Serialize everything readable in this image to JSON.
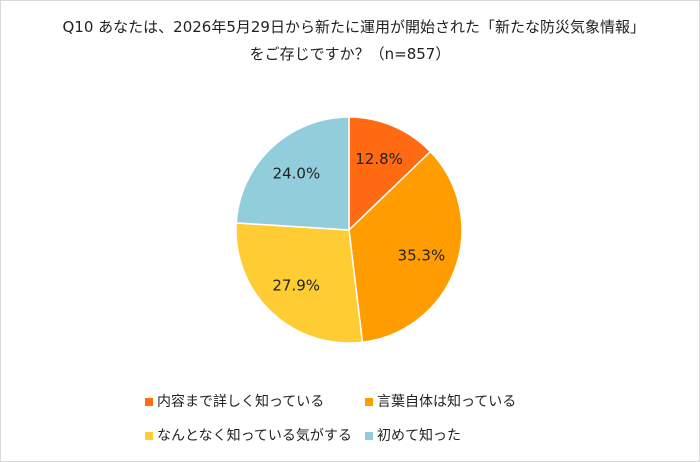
{
  "chart_data": {
    "type": "pie",
    "title": "Q10 あなたは、2026年5月29日から新たに運用が開始された「新たな防災気象情報」をご存じですか？（n=857）",
    "categories": [
      "内容まで詳しく知っている",
      "言葉自体は知っている",
      "なんとなく知っている気がする",
      "初めて知った"
    ],
    "values": [
      12.8,
      35.3,
      27.9,
      24.0
    ],
    "value_labels": [
      "12.8%",
      "35.3%",
      "27.9%",
      "24.0%"
    ],
    "colors": [
      "#ff6a13",
      "#ff9c00",
      "#ffcc33",
      "#92cddc"
    ]
  }
}
